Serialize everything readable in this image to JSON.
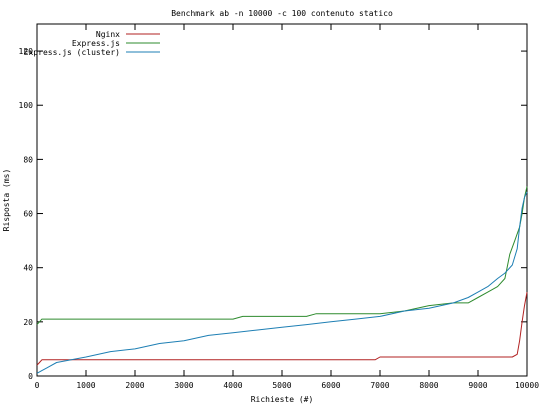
{
  "chart_data": {
    "type": "line",
    "title": "Benchmark ab -n 10000 -c 100 contenuto statico",
    "xlabel": "Richieste (#)",
    "ylabel": "Risposta (ms)",
    "xlim": [
      0,
      10000
    ],
    "ylim": [
      0,
      130
    ],
    "xticks": [
      0,
      1000,
      2000,
      3000,
      4000,
      5000,
      6000,
      7000,
      8000,
      9000,
      10000
    ],
    "yticks": [
      0,
      20,
      40,
      60,
      80,
      100,
      120
    ],
    "grid": false,
    "legend_position": "top-left",
    "series": [
      {
        "name": "Nginx",
        "color": "#b22222",
        "x": [
          0,
          50,
          100,
          200,
          1000,
          2000,
          3000,
          4000,
          5000,
          6000,
          6900,
          7000,
          7100,
          8000,
          9000,
          9700,
          9800,
          9850,
          9900,
          9950,
          10000
        ],
        "y": [
          4,
          5,
          6,
          6,
          6,
          6,
          6,
          6,
          6,
          6,
          6,
          7,
          7,
          7,
          7,
          7,
          8,
          13,
          20,
          26,
          31
        ]
      },
      {
        "name": "Express.js",
        "color": "#2e8b2e",
        "x": [
          0,
          50,
          100,
          300,
          1000,
          2000,
          3000,
          4000,
          4200,
          5000,
          5500,
          5700,
          6000,
          7000,
          7500,
          8000,
          8500,
          8800,
          9000,
          9200,
          9400,
          9550,
          9650,
          9750,
          9850,
          9900,
          9950,
          10000
        ],
        "y": [
          19,
          20,
          21,
          21,
          21,
          21,
          21,
          21,
          22,
          22,
          22,
          23,
          23,
          23,
          24,
          26,
          27,
          27,
          29,
          31,
          33,
          36,
          45,
          50,
          55,
          60,
          66,
          70
        ]
      },
      {
        "name": "Express.js (cluster)",
        "color": "#1e7fb4",
        "x": [
          0,
          100,
          200,
          400,
          700,
          1000,
          1500,
          2000,
          2500,
          3000,
          3500,
          4000,
          4500,
          5000,
          5500,
          6000,
          6500,
          7000,
          7500,
          8000,
          8500,
          8800,
          9000,
          9200,
          9400,
          9550,
          9700,
          9800,
          9850,
          9900,
          9950,
          10000
        ],
        "y": [
          1,
          2,
          3,
          5,
          6,
          7,
          9,
          10,
          12,
          13,
          15,
          16,
          17,
          18,
          19,
          20,
          21,
          22,
          24,
          25,
          27,
          29,
          31,
          33,
          36,
          38,
          41,
          47,
          55,
          62,
          66,
          68
        ]
      }
    ]
  }
}
